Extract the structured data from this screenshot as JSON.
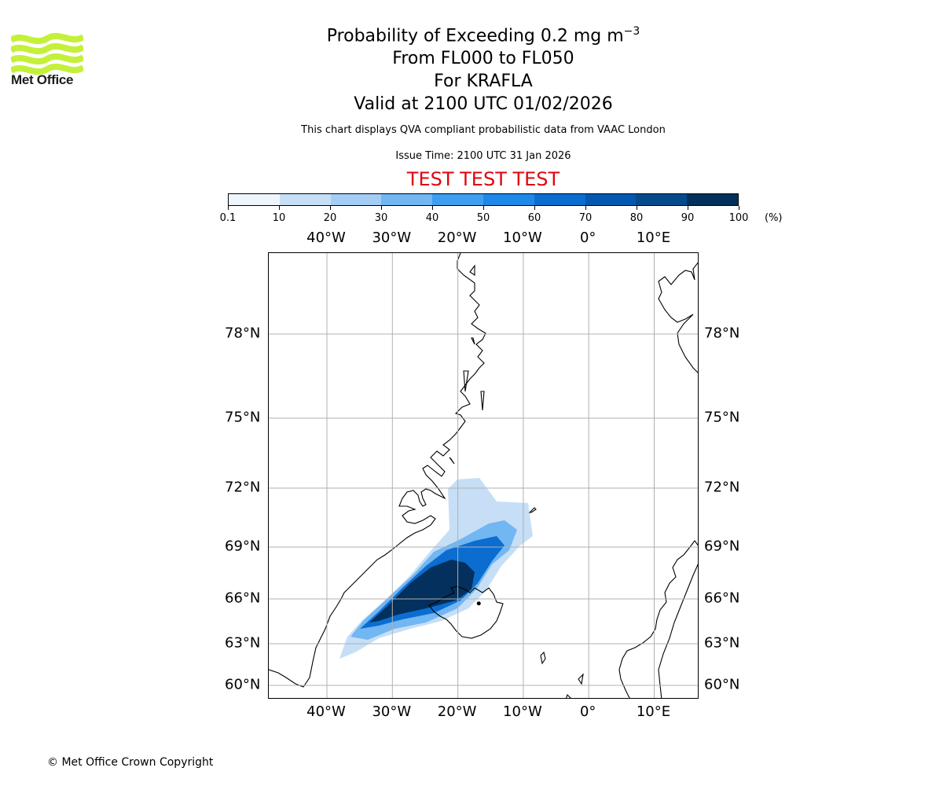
{
  "brand": {
    "logo_text": "Met Office",
    "logo_icon": "met-office-wave-logo",
    "logo_color": "#c4f03a"
  },
  "header": {
    "title_main": "Probability of Exceeding 0.2 mg m",
    "title_exponent": "−3",
    "level_range": "From FL000 to FL050",
    "volcano": "For KRAFLA",
    "valid_time": "Valid at 2100 UTC 01/02/2026",
    "description": "This chart displays QVA compliant probabilistic data from VAAC London",
    "issue_time": "Issue Time: 2100 UTC 31 Jan 2026",
    "test_banner": "TEST TEST TEST",
    "test_color": "#e0040f"
  },
  "legend": {
    "ticks": [
      "0.1",
      "10",
      "20",
      "30",
      "40",
      "50",
      "60",
      "70",
      "80",
      "90",
      "100"
    ],
    "units": "(%)",
    "colors": [
      "#eef5fc",
      "#c6dff6",
      "#a3cdf4",
      "#72b6f2",
      "#3e9ef0",
      "#1d88e8",
      "#0b6dd0",
      "#0558b0",
      "#044a8c",
      "#03305c"
    ]
  },
  "map": {
    "projection_extent": {
      "lon": [
        -49,
        17
      ],
      "lat": [
        59,
        81
      ]
    },
    "lon_ticks": [
      "40°W",
      "30°W",
      "20°W",
      "10°W",
      "0°",
      "10°E"
    ],
    "lon_values": [
      -40,
      -30,
      -20,
      -10,
      0,
      10
    ],
    "lat_ticks": [
      "60°N",
      "63°N",
      "66°N",
      "69°N",
      "72°N",
      "75°N",
      "78°N"
    ],
    "lat_values": [
      60,
      63,
      66,
      69,
      72,
      75,
      78
    ],
    "plume": {
      "source": "KRAFLA",
      "source_lon": -16.8,
      "source_lat": 65.7,
      "levels_percent": [
        10,
        30,
        60,
        90
      ]
    }
  },
  "footer": {
    "copyright": "© Met Office Crown Copyright"
  }
}
